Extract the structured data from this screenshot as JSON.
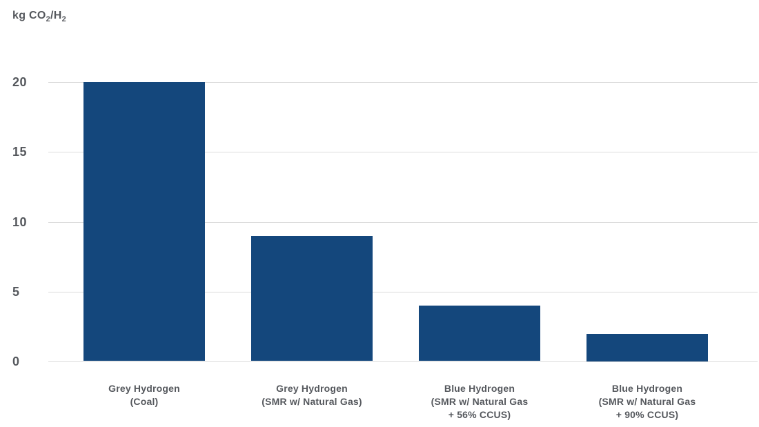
{
  "unit_label": {
    "prefix": "kg CO",
    "sub1": "2",
    "mid": "/H",
    "sub2": "2"
  },
  "colors": {
    "bar": "#14477c",
    "gridline": "#dbdbdb",
    "text": "#55585d",
    "background": "#ffffff"
  },
  "chart_data": {
    "type": "bar",
    "unit": "kg CO2/H2",
    "categories": [
      [
        "Grey Hydrogen",
        "(Coal)"
      ],
      [
        "Grey Hydrogen",
        "(SMR w/ Natural Gas)"
      ],
      [
        "Blue Hydrogen",
        "(SMR w/ Natural Gas",
        "+ 56% CCUS)"
      ],
      [
        "Blue Hydrogen",
        "(SMR w/ Natural Gas",
        "+ 90% CCUS)"
      ]
    ],
    "values": [
      20,
      9,
      4,
      2
    ],
    "yticks": [
      0,
      5,
      10,
      15,
      20
    ],
    "ylim": [
      0,
      20
    ],
    "grid": true,
    "legend": "none",
    "bar_color": "#14477c"
  }
}
